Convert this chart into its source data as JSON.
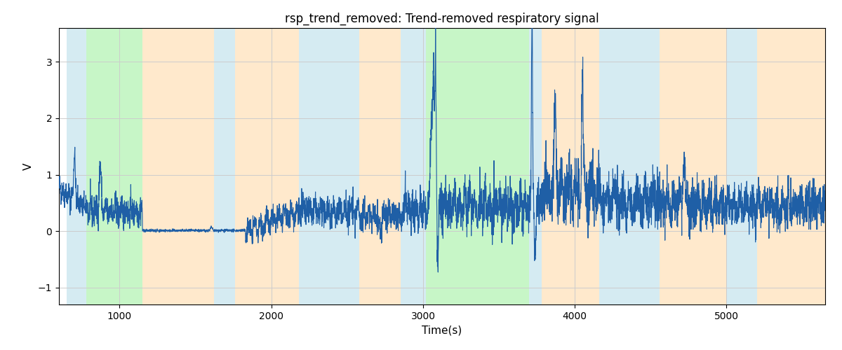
{
  "title": "rsp_trend_removed: Trend-removed respiratory signal",
  "xlabel": "Time(s)",
  "ylabel": "V",
  "xlim": [
    600,
    5650
  ],
  "ylim": [
    -1.3,
    3.6
  ],
  "line_color": "#1f5fa6",
  "line_width": 0.8,
  "background_color": "#ffffff",
  "grid_color": "#cccccc",
  "bands": [
    {
      "xmin": 650,
      "xmax": 780,
      "color": "#add8e6",
      "alpha": 0.5
    },
    {
      "xmin": 780,
      "xmax": 1150,
      "color": "#90ee90",
      "alpha": 0.5
    },
    {
      "xmin": 1150,
      "xmax": 1620,
      "color": "#ffd59b",
      "alpha": 0.5
    },
    {
      "xmin": 1620,
      "xmax": 1760,
      "color": "#add8e6",
      "alpha": 0.5
    },
    {
      "xmin": 1760,
      "xmax": 2180,
      "color": "#ffd59b",
      "alpha": 0.5
    },
    {
      "xmin": 2180,
      "xmax": 2580,
      "color": "#add8e6",
      "alpha": 0.5
    },
    {
      "xmin": 2580,
      "xmax": 2850,
      "color": "#ffd59b",
      "alpha": 0.5
    },
    {
      "xmin": 2850,
      "xmax": 3020,
      "color": "#add8e6",
      "alpha": 0.5
    },
    {
      "xmin": 3020,
      "xmax": 3700,
      "color": "#90ee90",
      "alpha": 0.5
    },
    {
      "xmin": 3700,
      "xmax": 3780,
      "color": "#add8e6",
      "alpha": 0.5
    },
    {
      "xmin": 3780,
      "xmax": 4160,
      "color": "#ffd59b",
      "alpha": 0.5
    },
    {
      "xmin": 4160,
      "xmax": 4560,
      "color": "#add8e6",
      "alpha": 0.5
    },
    {
      "xmin": 4560,
      "xmax": 5000,
      "color": "#ffd59b",
      "alpha": 0.5
    },
    {
      "xmin": 5000,
      "xmax": 5200,
      "color": "#add8e6",
      "alpha": 0.5
    },
    {
      "xmin": 5200,
      "xmax": 5650,
      "color": "#ffd59b",
      "alpha": 0.5
    }
  ],
  "seed": 42,
  "n_points": 5100,
  "t_start": 600,
  "t_end": 5650
}
